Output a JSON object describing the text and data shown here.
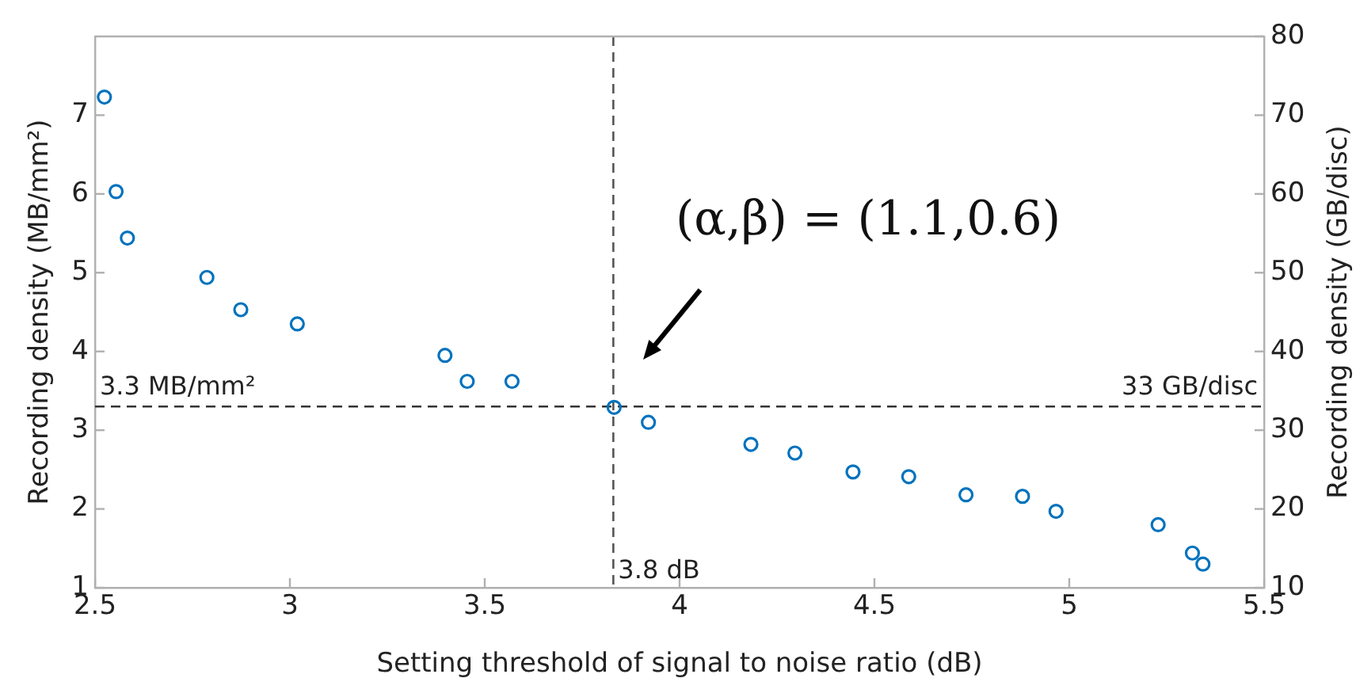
{
  "chart_data": {
    "type": "scatter",
    "xlabel": "Setting threshold of signal to noise ratio (dB)",
    "ylabel": "Recording density (MB/mm²)",
    "y2label": "Recording density (GB/disc)",
    "x": [
      2.524,
      2.554,
      2.583,
      2.787,
      2.874,
      3.019,
      3.398,
      3.455,
      3.57,
      3.832,
      3.92,
      4.183,
      4.296,
      4.445,
      4.588,
      4.735,
      4.88,
      4.966,
      5.228,
      5.316,
      5.343
    ],
    "series": [
      {
        "color": "#0072bd",
        "values": [
          7.23,
          6.03,
          5.44,
          4.94,
          4.53,
          4.35,
          3.95,
          3.62,
          3.62,
          3.29,
          3.1,
          2.82,
          2.71,
          2.47,
          2.41,
          2.18,
          2.16,
          1.97,
          1.8,
          1.44,
          1.3
        ]
      }
    ],
    "xlim": [
      2.5,
      5.5
    ],
    "xticks": [
      2.5,
      3,
      3.5,
      4,
      4.5,
      5,
      5.5
    ],
    "ylim": [
      1,
      8
    ],
    "yticks": [
      1,
      2,
      3,
      4,
      5,
      6,
      7
    ],
    "y2lim": [
      10,
      80
    ],
    "y2ticks": [
      10,
      20,
      30,
      40,
      50,
      60,
      70,
      80
    ],
    "ref_lines": [
      {
        "axis": "y",
        "value": 3.3,
        "label": "3.3 MB/mm²",
        "color": "#333333",
        "line_style": "dashed"
      },
      {
        "axis": "x",
        "value": 3.83,
        "label": "3.8 dB",
        "color": "#555555",
        "line_style": "dashed"
      }
    ],
    "annotations": [
      "(α,β) = (1.1,0.6)",
      {
        "text": "33 GB/disc",
        "x": 5.5,
        "y": 3.3
      }
    ],
    "marker": "circle",
    "grid": false,
    "legend": false
  }
}
